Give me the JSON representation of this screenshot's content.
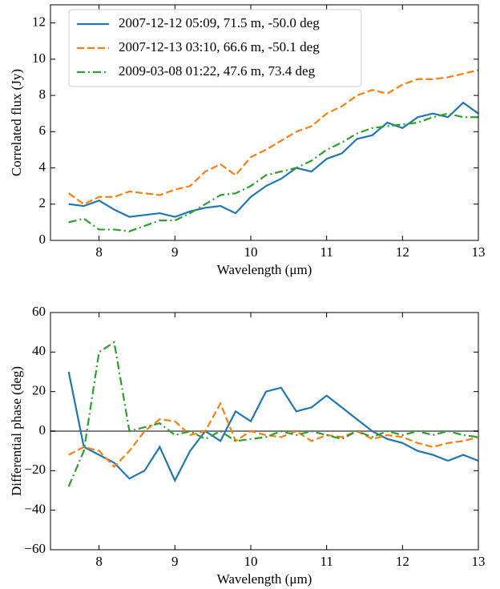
{
  "chart_data": [
    {
      "type": "line",
      "xlabel": "Wavelength (μm)",
      "ylabel": "Correlated flux (Jy)",
      "xlim": [
        7.36,
        13.0
      ],
      "ylim": [
        0,
        13
      ],
      "xticks": [
        8,
        9,
        10,
        11,
        12,
        13
      ],
      "yticks": [
        0,
        2,
        4,
        6,
        8,
        10,
        12
      ],
      "grid": false,
      "legend": "upper left",
      "x": [
        7.6,
        7.8,
        8.0,
        8.2,
        8.4,
        8.6,
        8.8,
        9.0,
        9.2,
        9.4,
        9.6,
        9.8,
        10.0,
        10.2,
        10.4,
        10.6,
        10.8,
        11.0,
        11.2,
        11.4,
        11.6,
        11.8,
        12.0,
        12.2,
        12.4,
        12.6,
        12.8,
        13.0
      ],
      "series": [
        {
          "name": "2007-12-12 05:09, 71.5 m, -50.0 deg",
          "color": "#1f77b4",
          "dash": "solid",
          "values": [
            2.0,
            1.9,
            2.2,
            1.7,
            1.3,
            1.4,
            1.5,
            1.3,
            1.6,
            1.8,
            1.9,
            1.5,
            2.4,
            3.0,
            3.4,
            4.0,
            3.8,
            4.5,
            4.8,
            5.6,
            5.8,
            6.5,
            6.2,
            6.8,
            7.0,
            6.8,
            7.6,
            7.0
          ]
        },
        {
          "name": "2007-12-13 03:10, 66.6 m, -50.1 deg",
          "color": "#ff7f0e",
          "dash": "dashed",
          "values": [
            2.6,
            2.0,
            2.4,
            2.4,
            2.7,
            2.6,
            2.5,
            2.8,
            3.0,
            3.8,
            4.2,
            3.6,
            4.6,
            5.0,
            5.5,
            6.0,
            6.3,
            7.0,
            7.4,
            8.0,
            8.3,
            8.1,
            8.6,
            8.9,
            8.9,
            9.0,
            9.2,
            9.4
          ]
        },
        {
          "name": "2009-03-08 01:22, 47.6 m, 73.4 deg",
          "color": "#2ca02c",
          "dash": "dashdot",
          "values": [
            1.0,
            1.2,
            0.6,
            0.6,
            0.5,
            0.8,
            1.1,
            1.1,
            1.5,
            2.0,
            2.5,
            2.6,
            3.0,
            3.6,
            3.8,
            4.0,
            4.4,
            5.0,
            5.4,
            5.9,
            6.2,
            6.3,
            6.4,
            6.5,
            6.8,
            7.0,
            6.8,
            6.8
          ]
        }
      ]
    },
    {
      "type": "line",
      "xlabel": "Wavelength (μm)",
      "ylabel": "Differential phase (deg)",
      "xlim": [
        7.36,
        13.0
      ],
      "ylim": [
        -60,
        60
      ],
      "xticks": [
        8,
        9,
        10,
        11,
        12,
        13
      ],
      "yticks": [
        {
          "value": -60,
          "label": "−60"
        },
        {
          "value": -40,
          "label": "−40"
        },
        {
          "value": -20,
          "label": "−20"
        },
        0,
        20,
        40,
        60
      ],
      "grid": false,
      "hline": 0,
      "hline_color": "#808080",
      "x": [
        7.6,
        7.8,
        8.0,
        8.2,
        8.4,
        8.6,
        8.8,
        9.0,
        9.2,
        9.4,
        9.6,
        9.8,
        10.0,
        10.2,
        10.4,
        10.6,
        10.8,
        11.0,
        11.2,
        11.4,
        11.6,
        11.8,
        12.0,
        12.2,
        12.4,
        12.6,
        12.8,
        13.0
      ],
      "series": [
        {
          "color": "#1f77b4",
          "dash": "solid",
          "values": [
            30,
            -8,
            -12,
            -16,
            -24,
            -20,
            -8,
            -25,
            -10,
            0,
            -5,
            10,
            5,
            20,
            22,
            10,
            12,
            18,
            12,
            6,
            0,
            -4,
            -6,
            -10,
            -12,
            -15,
            -12,
            -15
          ]
        },
        {
          "color": "#ff7f0e",
          "dash": "dashed",
          "values": [
            -12,
            -8,
            -10,
            -18,
            -10,
            0,
            6,
            5,
            -2,
            0,
            14,
            -5,
            0,
            -2,
            -3,
            0,
            -5,
            -2,
            -3,
            0,
            -4,
            -2,
            -3,
            -6,
            -8,
            -6,
            -5,
            -3
          ]
        },
        {
          "color": "#2ca02c",
          "dash": "dashdot",
          "values": [
            -28,
            -10,
            40,
            45,
            0,
            2,
            4,
            -2,
            0,
            -4,
            0,
            -5,
            -4,
            -3,
            0,
            -2,
            0,
            -2,
            -4,
            0,
            -3,
            0,
            -2,
            0,
            -2,
            0,
            -2,
            -3
          ]
        }
      ]
    }
  ]
}
